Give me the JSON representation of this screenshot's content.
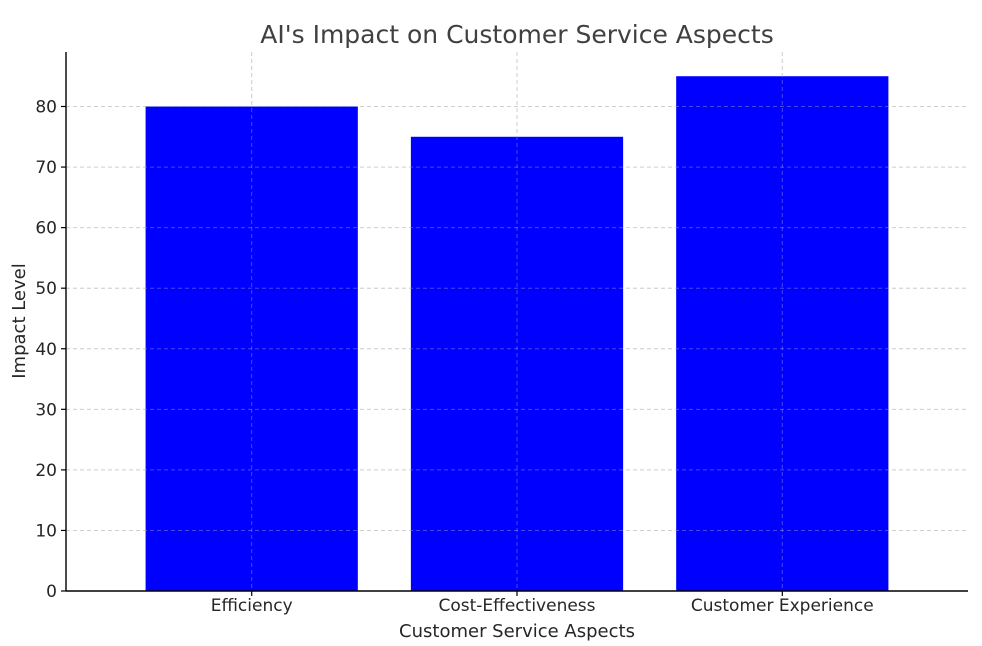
{
  "chart_data": {
    "type": "bar",
    "title": "AI's Impact on Customer Service Aspects",
    "xlabel": "Customer Service Aspects",
    "ylabel": "Impact Level",
    "categories": [
      "Efficiency",
      "Cost-Effectiveness",
      "Customer Experience"
    ],
    "values": [
      80,
      75,
      85
    ],
    "ylim": [
      0,
      89
    ],
    "yticks": [
      0,
      10,
      20,
      30,
      40,
      50,
      60,
      70,
      80
    ],
    "bar_color": "#0000ff",
    "grid": true
  }
}
